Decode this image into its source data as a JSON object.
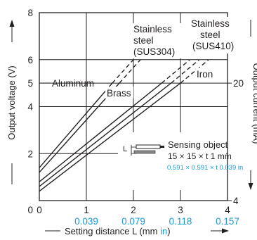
{
  "chart_data": {
    "type": "line",
    "xlabel": "Setting distance L (mm in)",
    "xlabel_main": "Setting distance L (mm ",
    "xlabel_unit_alt": "in",
    "xlabel_close": ")",
    "ylabel": "Output voltage (V)",
    "y2label": "Output current (mA)",
    "xlim": [
      0,
      4
    ],
    "ylim": [
      0,
      8
    ],
    "grid": true,
    "x_ticks": [
      "0",
      "1",
      "2",
      "3",
      "4"
    ],
    "x_ticks_in": [
      "0.039",
      "0.079",
      "0.118",
      "0.157"
    ],
    "y_ticks": [
      "0",
      "2",
      "4",
      "5",
      "6",
      "8"
    ],
    "y2_ticks": [
      "4",
      "20"
    ],
    "series": [
      {
        "name": "Aluminum",
        "solid": [
          [
            0,
            1.4
          ],
          [
            1.55,
            5.0
          ]
        ],
        "dashed": [
          [
            1.55,
            5.0
          ],
          [
            2.0,
            6.0
          ]
        ]
      },
      {
        "name": "Brass",
        "solid": [
          [
            0,
            1.2
          ],
          [
            1.7,
            5.0
          ]
        ],
        "dashed": [
          [
            1.7,
            5.0
          ],
          [
            2.15,
            6.0
          ]
        ]
      },
      {
        "name": "Stainless steel (SUS304)",
        "solid": [
          [
            0,
            0.8
          ],
          [
            2.6,
            5.0
          ]
        ],
        "dashed": [
          [
            2.6,
            5.0
          ],
          [
            3.2,
            6.0
          ]
        ]
      },
      {
        "name": "Stainless steel (SUS410)",
        "solid": [
          [
            0,
            0.6
          ],
          [
            2.8,
            5.0
          ]
        ],
        "dashed": [
          [
            2.8,
            5.0
          ],
          [
            3.4,
            6.0
          ]
        ]
      },
      {
        "name": "Iron",
        "solid": [
          [
            0,
            0.4
          ],
          [
            3.0,
            5.0
          ]
        ],
        "dashed": [
          [
            3.0,
            5.0
          ],
          [
            3.6,
            6.0
          ]
        ]
      }
    ],
    "annotations": {
      "aluminum": "Aluminum",
      "brass": "Brass",
      "iron": "Iron",
      "sus304": [
        "Stainless",
        "steel",
        "(SUS304)"
      ],
      "sus410": [
        "Stainless",
        "steel",
        "(SUS410)"
      ],
      "sensing_object": [
        "Sensing object",
        "15 × 15 × t 1 mm",
        "0.591 × 0.591 × t 0.039 in"
      ],
      "diagram_label": "L"
    },
    "colors": {
      "line": "#231f20",
      "accent": "#1a9ad6"
    }
  }
}
